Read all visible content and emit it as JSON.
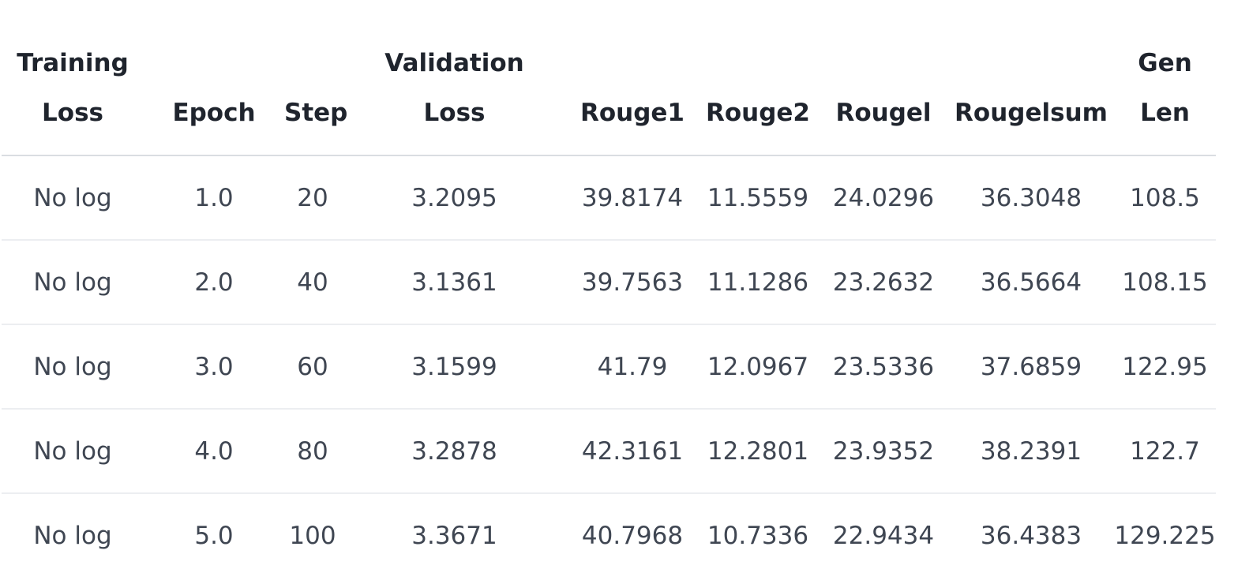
{
  "table": {
    "columns": [
      "Training\nLoss",
      "Epoch",
      "Step",
      "Validation\nLoss",
      "Rouge1",
      "Rouge2",
      "Rougel",
      "Rougelsum",
      "Gen\nLen"
    ],
    "rows": [
      [
        "No log",
        "1.0",
        "20",
        "3.2095",
        "39.8174",
        "11.5559",
        "24.0296",
        "36.3048",
        "108.5"
      ],
      [
        "No log",
        "2.0",
        "40",
        "3.1361",
        "39.7563",
        "11.1286",
        "23.2632",
        "36.5664",
        "108.15"
      ],
      [
        "No log",
        "3.0",
        "60",
        "3.1599",
        "41.79",
        "12.0967",
        "23.5336",
        "37.6859",
        "122.95"
      ],
      [
        "No log",
        "4.0",
        "80",
        "3.2878",
        "42.3161",
        "12.2801",
        "23.9352",
        "38.2391",
        "122.7"
      ],
      [
        "No log",
        "5.0",
        "100",
        "3.3671",
        "40.7968",
        "10.7336",
        "22.9434",
        "36.4383",
        "129.225"
      ]
    ]
  }
}
